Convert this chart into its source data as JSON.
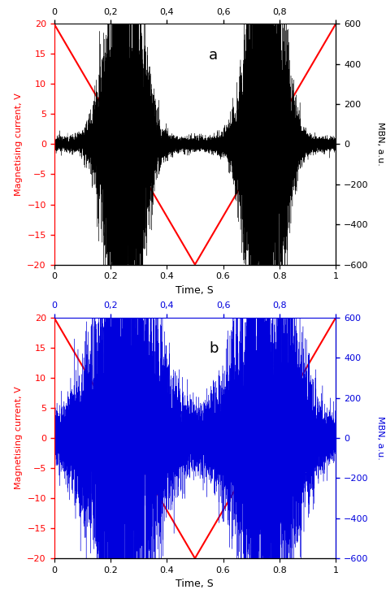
{
  "title_a": "a",
  "title_b": "b",
  "xlabel": "Time, S",
  "ylabel_left": "Magnetising current, V",
  "ylabel_right": "MBN, a.u.",
  "xlim": [
    0,
    1
  ],
  "ylim_left": [
    -20,
    20
  ],
  "ylim_right": [
    -600,
    600
  ],
  "top_xticks": [
    0,
    0.2,
    0.4,
    0.6,
    0.8,
    1.0
  ],
  "top_xticklabels_a": [
    "0",
    "0,2",
    "0,4",
    "0,6",
    "0,8",
    ""
  ],
  "top_xticklabels_b": [
    "0",
    "0,2",
    "0,4",
    "0,6",
    "0,8",
    ""
  ],
  "bottom_xticks": [
    0,
    0.2,
    0.4,
    0.6,
    0.8,
    1.0
  ],
  "bottom_xticklabels": [
    "0",
    "0.2",
    "0.4",
    "0.6",
    "0.8",
    "1"
  ],
  "yticks_left": [
    -20,
    -15,
    -10,
    -5,
    0,
    5,
    10,
    15,
    20
  ],
  "yticks_right": [
    -600,
    -400,
    -200,
    0,
    200,
    400,
    600
  ],
  "red_color": "#ff0000",
  "black_color": "#000000",
  "blue_color": "#0000dd",
  "noise_seed_a": 42,
  "noise_seed_b": 123,
  "n_points": 10000,
  "panel_a_noise_color": "#000000",
  "panel_b_noise_color": "#0000dd"
}
